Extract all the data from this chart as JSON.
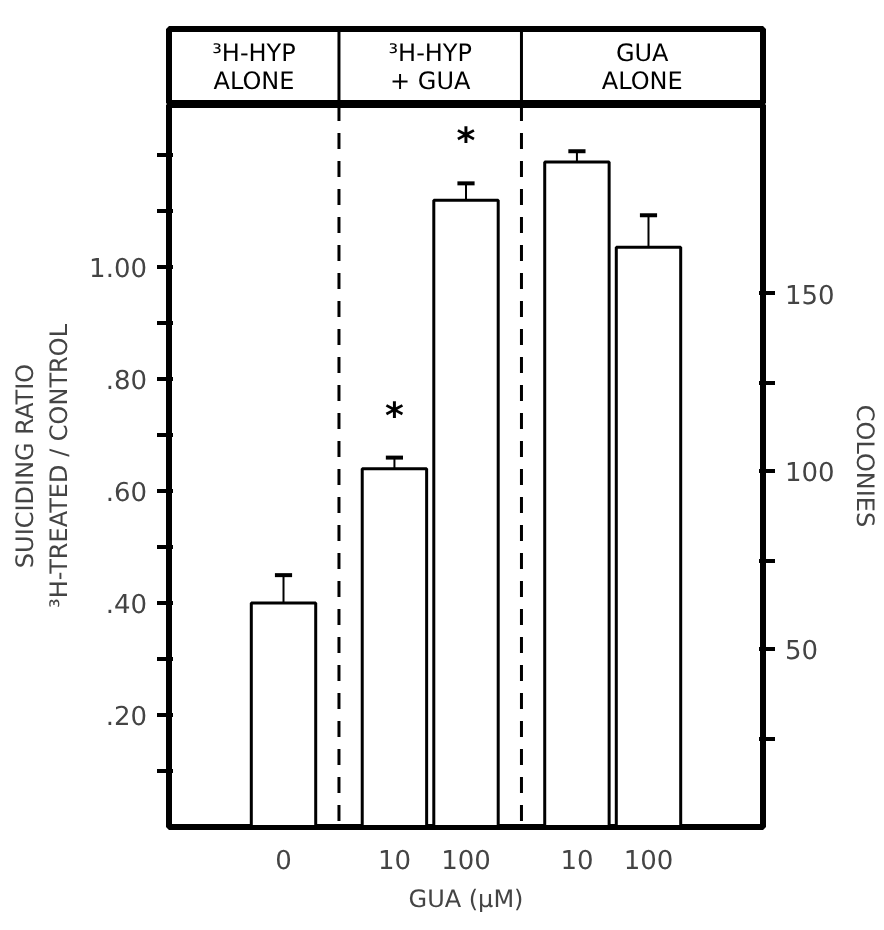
{
  "chart_data": {
    "type": "bar",
    "xlabel": "GUA (μM)",
    "ylabel": "SUICIDING RATIO\n³H-TREATED / CONTROL",
    "y2label": "COLONIES",
    "categories": [
      "0",
      "10",
      "100",
      "10",
      "100"
    ],
    "series": [
      {
        "color": "#ffffff",
        "values": [
          0.4,
          null,
          null,
          null,
          null
        ],
        "errors": [
          [
            0.4,
            0.45
          ],
          null,
          null,
          null,
          null
        ]
      },
      {
        "color": "#ffffff",
        "values": [
          null,
          0.64,
          1.12,
          null,
          null
        ],
        "errors": [
          null,
          [
            0.64,
            0.66
          ],
          [
            1.12,
            1.15
          ],
          null,
          null
        ],
        "value_labels": [
          null,
          "*",
          "*",
          null,
          null
        ]
      },
      {
        "color": "#ffffff",
        "axis": "y2",
        "values": [
          null,
          null,
          null,
          187,
          163
        ],
        "errors": [
          null,
          null,
          null,
          [
            187,
            190
          ],
          [
            163,
            172
          ]
        ]
      }
    ],
    "ylim": [
      0,
      1.29
    ],
    "yticks": [
      {
        "value": 0.1,
        "label": null
      },
      {
        "value": 0.2,
        "label": ".20"
      },
      {
        "value": 0.3,
        "label": null
      },
      {
        "value": 0.4,
        "label": ".40"
      },
      {
        "value": 0.5,
        "label": null
      },
      {
        "value": 0.6,
        "label": ".60"
      },
      {
        "value": 0.7,
        "label": null
      },
      {
        "value": 0.8,
        "label": ".80"
      },
      {
        "value": 0.9,
        "label": null
      },
      {
        "value": 1.0,
        "label": "1.00"
      },
      {
        "value": 1.1,
        "label": null
      },
      {
        "value": 1.2,
        "label": null
      }
    ],
    "y2lim": [
      0,
      203
    ],
    "y2ticks": [
      {
        "value": 25,
        "label": null
      },
      50,
      {
        "value": 75,
        "label": null
      },
      100,
      {
        "value": 125,
        "label": null
      },
      150
    ],
    "annotations": [
      "³H-HYP\nALONE",
      "³H-HYP\n+ GUA",
      "GUA\nALONE"
    ],
    "grid": false,
    "legend": false
  }
}
